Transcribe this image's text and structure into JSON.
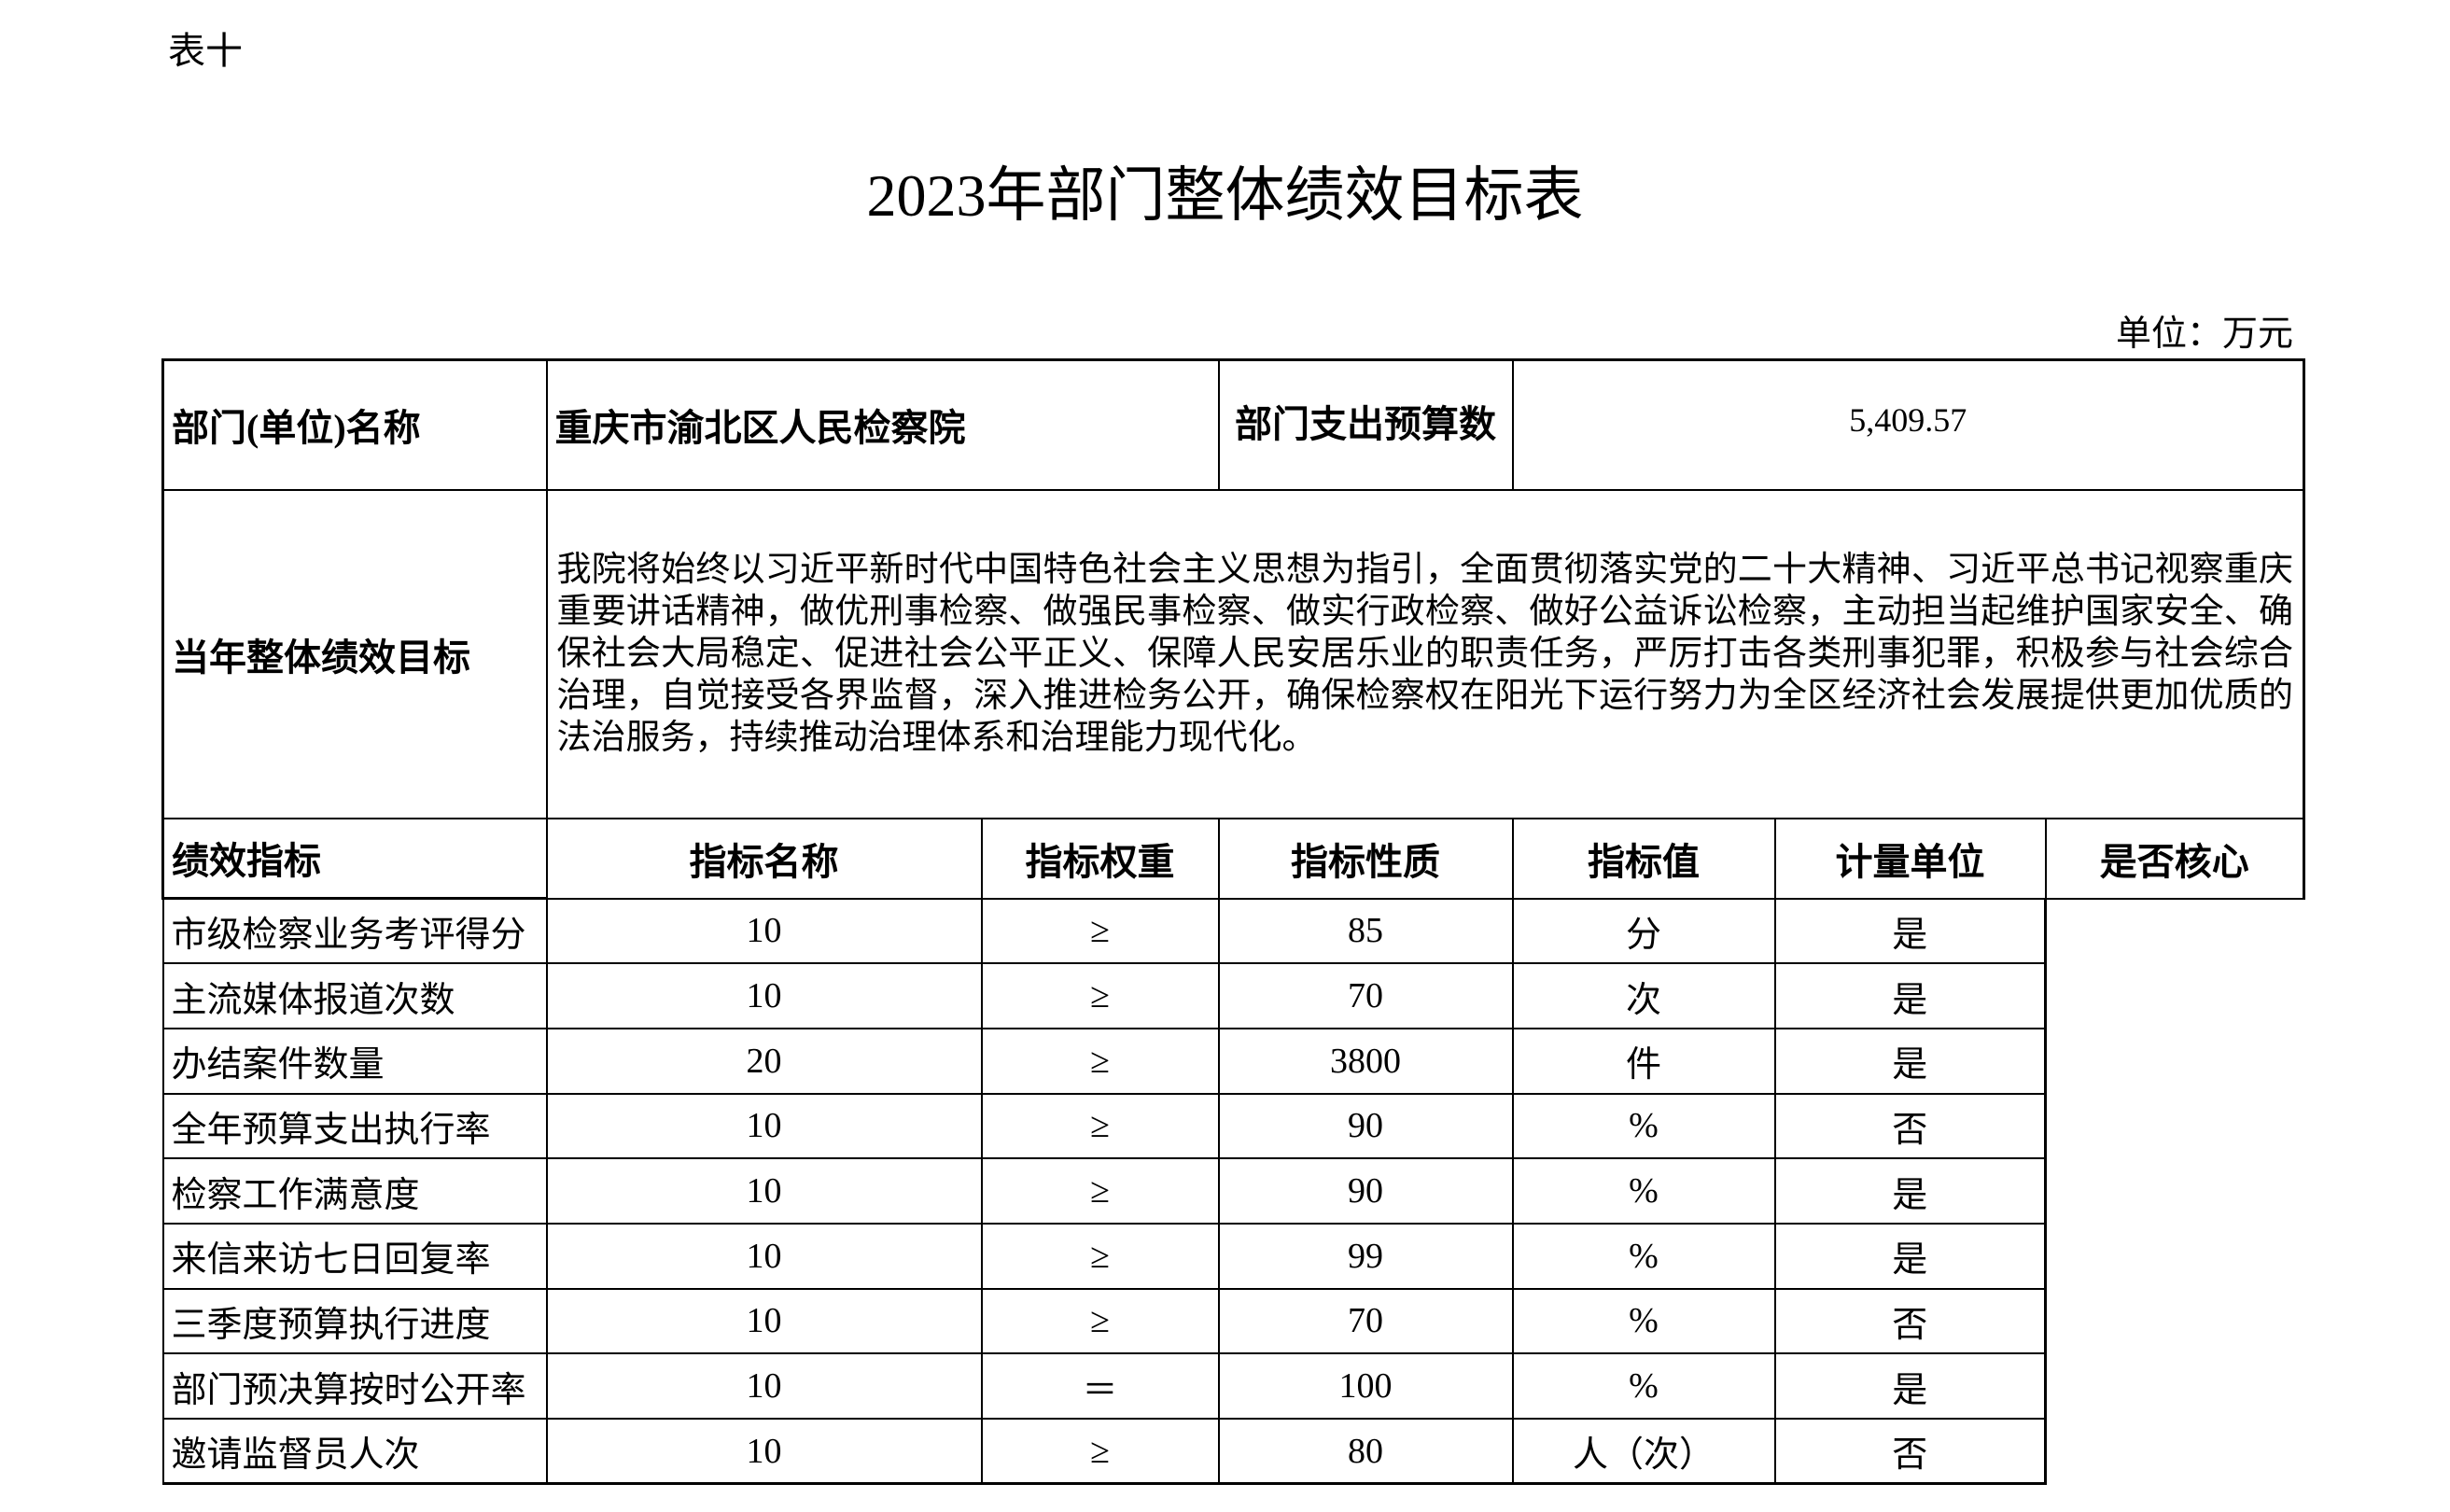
{
  "table_no": "表十",
  "title": "2023年部门整体绩效目标表",
  "unit": "单位：万元",
  "dept": {
    "name_label": "部门(单位)名称",
    "name_value": "重庆市渝北区人民检察院",
    "budget_label": "部门支出预算数",
    "budget_value": "5,409.57"
  },
  "goal": {
    "label": "当年整体绩效目标",
    "text": "我院将始终以习近平新时代中国特色社会主义思想为指引，全面贯彻落实党的二十大精神、习近平总书记视察重庆重要讲话精神，做优刑事检察、做强民事检察、做实行政检察、做好公益诉讼检察，主动担当起维护国家安全、确保社会大局稳定、促进社会公平正义、保障人民安居乐业的职责任务，严厉打击各类刑事犯罪，积极参与社会综合治理，自觉接受各界监督，深入推进检务公开，确保检察权在阳光下运行努力为全区经济社会发展提供更加优质的法治服务，持续推动治理体系和治理能力现代化。"
  },
  "indicators": {
    "label": "绩效指标",
    "headers": [
      "指标名称",
      "指标权重",
      "指标性质",
      "指标值",
      "计量单位",
      "是否核心"
    ],
    "rows": [
      [
        "市级检察业务考评得分",
        "10",
        "≥",
        "85",
        "分",
        "是"
      ],
      [
        "主流媒体报道次数",
        "10",
        "≥",
        "70",
        "次",
        "是"
      ],
      [
        "办结案件数量",
        "20",
        "≥",
        "3800",
        "件",
        "是"
      ],
      [
        "全年预算支出执行率",
        "10",
        "≥",
        "90",
        "%",
        "否"
      ],
      [
        "检察工作满意度",
        "10",
        "≥",
        "90",
        "%",
        "是"
      ],
      [
        "来信来访七日回复率",
        "10",
        "≥",
        "99",
        "%",
        "是"
      ],
      [
        "三季度预算执行进度",
        "10",
        "≥",
        "70",
        "%",
        "否"
      ],
      [
        "部门预决算按时公开率",
        "10",
        "＝",
        "100",
        "%",
        "是"
      ],
      [
        "邀请监督员人次",
        "10",
        "≥",
        "80",
        "人（次）",
        "否"
      ]
    ]
  }
}
